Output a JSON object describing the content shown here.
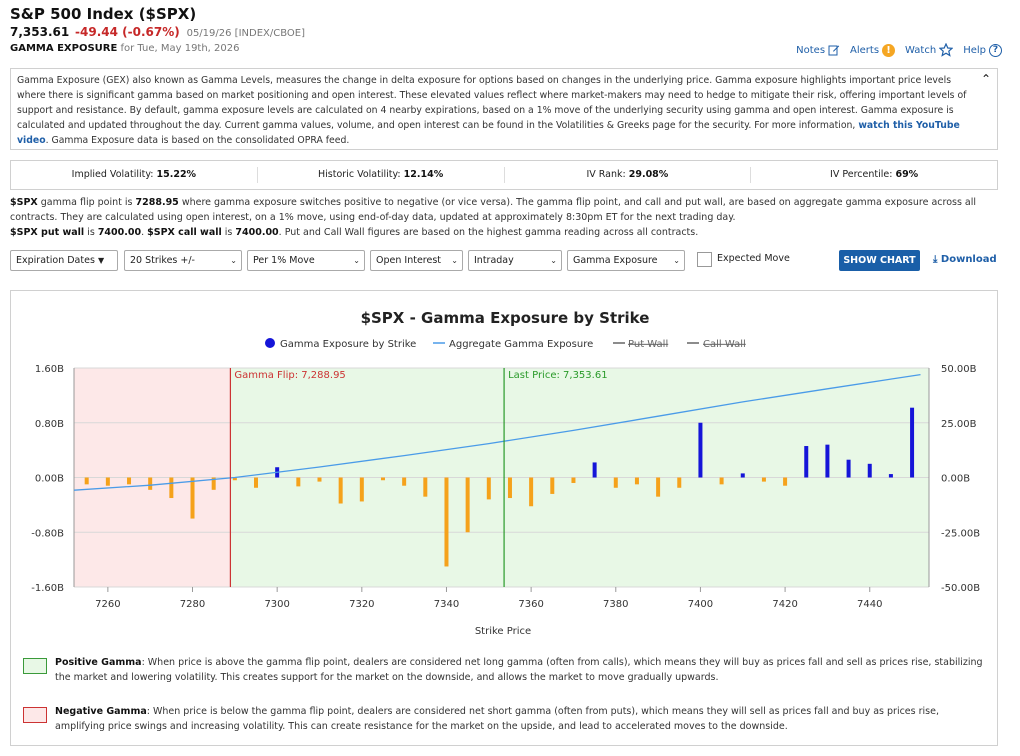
{
  "header": {
    "title": "S&P 500 Index ($SPX)",
    "price": "7,353.61",
    "change": "-49.44 (-0.67%)",
    "meta": "05/19/26 [INDEX/CBOE]",
    "subtitle_bold": "GAMMA EXPOSURE",
    "subtitle_date": "for Tue, May 19th, 2026"
  },
  "toplinks": {
    "notes": "Notes",
    "alerts": "Alerts",
    "watch": "Watch",
    "help": "Help"
  },
  "description": {
    "text": "Gamma Exposure (GEX) also known as Gamma Levels, measures the change in delta exposure for options based on changes in the underlying price. Gamma exposure highlights important price levels where there is significant gamma based on market positioning and open interest. These elevated values reflect where market-makers may need to hedge to mitigate their risk, offering important levels of support and resistance. By default, gamma exposure levels are calculated on 4 nearby expirations, based on a 1% move of the underlying security using gamma and open interest. Gamma exposure is calculated and updated throughout the day. Current gamma values, volume, and open interest can be found in the Volatilities & Greeks page for the security. For more information, ",
    "link": "watch this YouTube video",
    "tail": ". Gamma Exposure data is based on the consolidated OPRA feed."
  },
  "stats": [
    {
      "label": "Implied Volatility:",
      "value": "15.22%"
    },
    {
      "label": "Historic Volatility:",
      "value": "12.14%"
    },
    {
      "label": "IV Rank:",
      "value": "29.08%"
    },
    {
      "label": "IV Percentile:",
      "value": "69%"
    }
  ],
  "flip": {
    "sym": "$SPX",
    "t1": " gamma flip point is ",
    "flip_value": "7288.95",
    "t2": " where gamma exposure switches positive to negative (or vice versa). The gamma flip point, and call and put wall, are based on aggregate gamma exposure across all contracts. They are calculated using open interest, on a 1% move, using end-of-day data, updated at approximately 8:30pm ET for the next trading day.",
    "put_label": "$SPX put wall",
    "t3": " is ",
    "put_value": "7400.00",
    "t4": ". ",
    "call_label": "$SPX call wall",
    "t5": " is ",
    "call_value": "7400.00",
    "t6": ". Put and Call Wall figures are based on the highest gamma reading across all contracts."
  },
  "controls": {
    "expiration": "Expiration Dates",
    "strikes": "20 Strikes +/-",
    "move": "Per 1% Move",
    "interest": "Open Interest",
    "period": "Intraday",
    "metric": "Gamma Exposure",
    "expected_move": "Expected Move",
    "show_chart": "SHOW CHART",
    "download": "Download"
  },
  "chart_data": {
    "type": "bar",
    "title": "$SPX - Gamma Exposure by Strike",
    "xlabel": "Strike Price",
    "legend": [
      "Gamma Exposure by Strike",
      "Aggregate Gamma Exposure",
      "Put Wall",
      "Call Wall"
    ],
    "legend_position": "top",
    "xlim": [
      7252,
      7454
    ],
    "x_ticks": [
      7260,
      7280,
      7300,
      7320,
      7340,
      7360,
      7380,
      7400,
      7420,
      7440
    ],
    "y_left_ticks": [
      "1.60B",
      "0.80B",
      "0.00B",
      "-0.80B",
      "-1.60B"
    ],
    "ylim_left": [
      -1.6,
      1.6
    ],
    "y_right_ticks": [
      "50.00B",
      "25.00B",
      "0.00B",
      "-25.00B",
      "-50.00B"
    ],
    "ylim_right": [
      -50,
      50
    ],
    "bars": {
      "name": "Gamma Exposure by Strike",
      "color": "#f5a21b",
      "positive_color": "#1515d8",
      "x": [
        7255,
        7260,
        7265,
        7270,
        7275,
        7280,
        7285,
        7290,
        7295,
        7300,
        7305,
        7310,
        7315,
        7320,
        7325,
        7330,
        7335,
        7340,
        7345,
        7350,
        7355,
        7360,
        7365,
        7370,
        7375,
        7380,
        7385,
        7390,
        7395,
        7400,
        7405,
        7410,
        7415,
        7420,
        7425,
        7430,
        7435,
        7440,
        7445,
        7450
      ],
      "values": [
        -0.1,
        -0.12,
        -0.1,
        -0.18,
        -0.3,
        -0.6,
        -0.18,
        -0.04,
        -0.15,
        0.15,
        -0.13,
        -0.06,
        -0.38,
        -0.35,
        -0.04,
        -0.12,
        -0.28,
        -1.3,
        -0.8,
        -0.32,
        -0.3,
        -0.42,
        -0.24,
        -0.08,
        0.22,
        -0.15,
        -0.1,
        -0.28,
        -0.15,
        0.8,
        -0.1,
        0.06,
        -0.06,
        -0.12,
        0.46,
        0.48,
        0.26,
        0.2,
        0.05,
        1.02
      ]
    },
    "aggregate": {
      "name": "Aggregate Gamma Exposure",
      "color": "#4a9be8",
      "x": [
        7252,
        7270,
        7290,
        7310,
        7330,
        7350,
        7370,
        7390,
        7410,
        7430,
        7452
      ],
      "values": [
        -5.8,
        -3.5,
        0.0,
        4.8,
        10.0,
        15.5,
        21.5,
        28.0,
        34.5,
        40.5,
        47.0
      ]
    },
    "flip_marker": {
      "label": "Gamma Flip: 7,288.95",
      "x": 7288.95,
      "color": "#cc3333"
    },
    "price_marker": {
      "label": "Last Price: 7,353.61",
      "x": 7353.61,
      "color": "#2a9a2a"
    },
    "negative_zone_color": "#fde8e8",
    "positive_zone_color": "#e8f8e6"
  },
  "legend_notes": {
    "pos_title": "Positive Gamma",
    "pos_text": ": When price is above the gamma flip point, dealers are considered net long gamma (often from calls), which means they will buy as prices fall and sell as prices rise, stabilizing the market and lowering volatility. This creates support for the market on the downside, and allows the market to move gradually upwards.",
    "neg_title": "Negative Gamma",
    "neg_text": ": When price is below the gamma flip point, dealers are considered net short gamma (often from puts), which means they will sell as prices fall and buy as prices rise, amplifying price swings and increasing volatility. This can create resistance for the market on the upside, and lead to accelerated moves to the downside."
  }
}
